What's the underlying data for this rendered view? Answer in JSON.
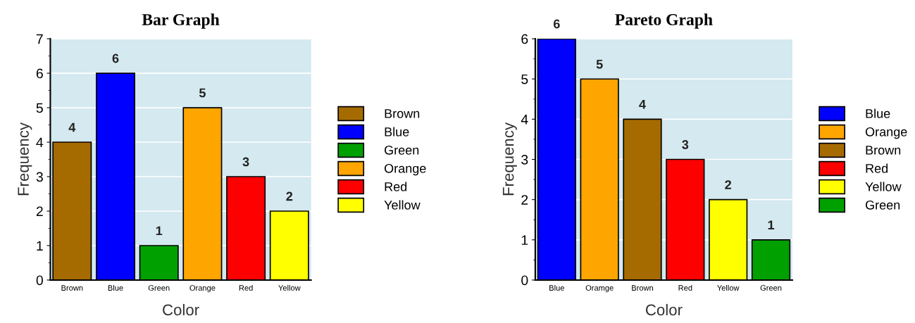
{
  "chart_data": [
    {
      "type": "bar",
      "title": "Bar Graph",
      "xlabel": "Color",
      "ylabel": "Frequency",
      "categories": [
        "Brown",
        "Blue",
        "Green",
        "Orange",
        "Red",
        "Yellow"
      ],
      "series": [
        {
          "name": "Brown",
          "color": "#a66b00",
          "values": [
            4,
            null,
            null,
            null,
            null,
            null
          ]
        },
        {
          "name": "Blue",
          "color": "#0000ff",
          "values": [
            null,
            6,
            null,
            null,
            null,
            null
          ]
        },
        {
          "name": "Green",
          "color": "#00a000",
          "values": [
            null,
            null,
            1,
            null,
            null,
            null
          ]
        },
        {
          "name": "Orange",
          "color": "#ffa500",
          "values": [
            null,
            null,
            null,
            5,
            null,
            null
          ]
        },
        {
          "name": "Red",
          "color": "#ff0000",
          "values": [
            null,
            null,
            null,
            null,
            3,
            null
          ]
        },
        {
          "name": "Yellow",
          "color": "#ffff00",
          "values": [
            null,
            null,
            null,
            null,
            null,
            2
          ]
        }
      ],
      "ylim": [
        0,
        7
      ],
      "yticks": [
        0,
        1,
        2,
        3,
        4,
        5,
        6,
        7
      ],
      "grid": "y",
      "data_labels": true,
      "legend": "right"
    },
    {
      "type": "bar",
      "title": "Pareto Graph",
      "xlabel": "Color",
      "ylabel": "Frequency",
      "categories": [
        "Blue",
        "Oramge",
        "Brown",
        "Red",
        "Yellow",
        "Green"
      ],
      "series": [
        {
          "name": "Blue",
          "color": "#0000ff",
          "values": [
            6,
            null,
            null,
            null,
            null,
            null
          ]
        },
        {
          "name": "Orange",
          "color": "#ffa500",
          "values": [
            null,
            5,
            null,
            null,
            null,
            null
          ]
        },
        {
          "name": "Brown",
          "color": "#a66b00",
          "values": [
            null,
            null,
            4,
            null,
            null,
            null
          ]
        },
        {
          "name": "Red",
          "color": "#ff0000",
          "values": [
            null,
            null,
            null,
            3,
            null,
            null
          ]
        },
        {
          "name": "Yellow",
          "color": "#ffff00",
          "values": [
            null,
            null,
            null,
            null,
            2,
            null
          ]
        },
        {
          "name": "Green",
          "color": "#00a000",
          "values": [
            null,
            null,
            null,
            null,
            null,
            1
          ]
        }
      ],
      "ylim": [
        0,
        6
      ],
      "yticks": [
        0,
        1,
        2,
        3,
        4,
        5,
        6
      ],
      "grid": "y",
      "data_labels": true,
      "legend": "right"
    }
  ]
}
